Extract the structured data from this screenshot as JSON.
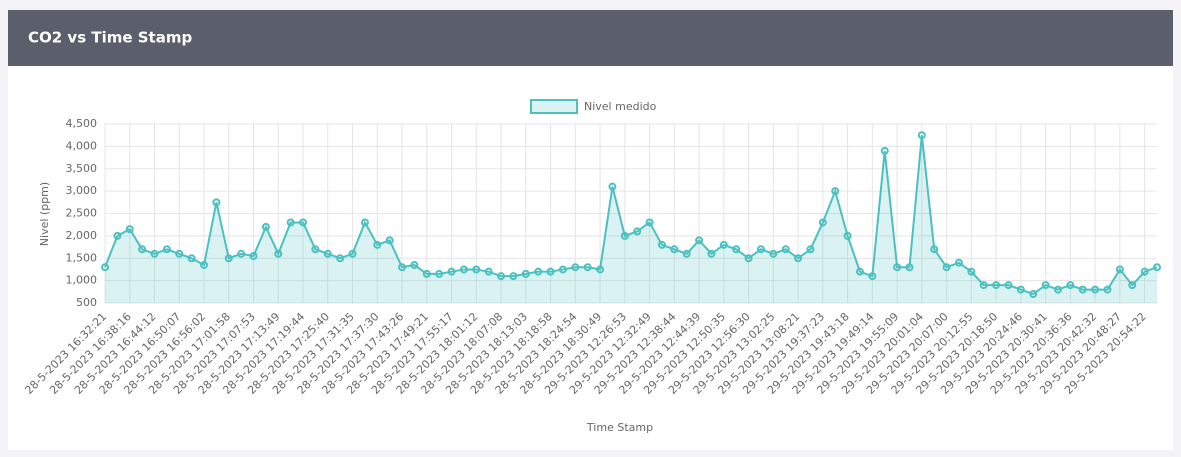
{
  "chart_data": {
    "type": "line",
    "title": "CO2 vs Time Stamp",
    "x_label": "Time Stamp",
    "y_label": "Nivel (ppm)",
    "categories": [
      "28-5-2023 16:32:21",
      null,
      "28-5-2023 16:38:16",
      null,
      "28-5-2023 16:44:12",
      null,
      "28-5-2023 16:50:07",
      null,
      "28-5-2023 16:56:02",
      null,
      "28-5-2023 17:01:58",
      null,
      "28-5-2023 17:07:53",
      null,
      "28-5-2023 17:13:49",
      null,
      "28-5-2023 17:19:44",
      null,
      "28-5-2023 17:25:40",
      null,
      "28-5-2023 17:31:35",
      null,
      "28-5-2023 17:37:30",
      null,
      "28-5-2023 17:43:26",
      null,
      "28-5-2023 17:49:21",
      null,
      "28-5-2023 17:55:17",
      null,
      "28-5-2023 18:01:12",
      null,
      "28-5-2023 18:07:08",
      null,
      "28-5-2023 18:13:03",
      null,
      "28-5-2023 18:18:58",
      null,
      "28-5-2023 18:24:54",
      null,
      "28-5-2023 18:30:49",
      null,
      "29-5-2023 12:26:53",
      null,
      "29-5-2023 12:32:49",
      null,
      "29-5-2023 12:38:44",
      null,
      "29-5-2023 12:44:39",
      null,
      "29-5-2023 12:50:35",
      null,
      "29-5-2023 12:56:30",
      null,
      "29-5-2023 13:02:25",
      null,
      "29-5-2023 13:08:21",
      null,
      "29-5-2023 19:37:23",
      null,
      "29-5-2023 19:43:18",
      null,
      "29-5-2023 19:49:14",
      null,
      "29-5-2023 19:55:09",
      null,
      "29-5-2023 20:01:04",
      null,
      "29-5-2023 20:07:00",
      null,
      "29-5-2023 20:12:55",
      null,
      "29-5-2023 20:18:50",
      null,
      "29-5-2023 20:24:46",
      null,
      "29-5-2023 20:30:41",
      null,
      "29-5-2023 20:36:36",
      null,
      "29-5-2023 20:42:32",
      null,
      "29-5-2023 20:48:27",
      null,
      "29-5-2023 20:54:22",
      null
    ],
    "series": [
      {
        "name": "Nivel medido",
        "color": "#4bc0c0",
        "values": [
          1300,
          2000,
          2150,
          1700,
          1600,
          1700,
          1600,
          1500,
          1350,
          2750,
          1500,
          1600,
          1550,
          2200,
          1600,
          2300,
          2300,
          1700,
          1600,
          1500,
          1600,
          2300,
          1800,
          1900,
          1300,
          1350,
          1150,
          1150,
          1200,
          1250,
          1250,
          1200,
          1100,
          1100,
          1150,
          1200,
          1200,
          1250,
          1300,
          1300,
          1250,
          3100,
          2000,
          2100,
          2300,
          1800,
          1700,
          1600,
          1900,
          1600,
          1800,
          1700,
          1500,
          1700,
          1600,
          1700,
          1500,
          1700,
          2300,
          3000,
          2000,
          1200,
          1100,
          3900,
          1300,
          1300,
          4250,
          1700,
          1300,
          1400,
          1200,
          900,
          900,
          900,
          800,
          700,
          900,
          800,
          900,
          800,
          800,
          800,
          1250,
          900,
          1200,
          1300
        ]
      }
    ],
    "ylim": [
      500,
      4500
    ],
    "yticks": [
      500,
      {
        "value": 1000,
        "label": "1,000"
      },
      {
        "value": 1500,
        "label": "1,500"
      },
      {
        "value": 2000,
        "label": "2,000"
      },
      {
        "value": 2500,
        "label": "2,500"
      },
      {
        "value": 3000,
        "label": "3,000"
      },
      {
        "value": 3500,
        "label": "3,500"
      },
      {
        "value": 4000,
        "label": "4,000"
      },
      {
        "value": 4500,
        "label": "4,500"
      }
    ],
    "grid": true,
    "legend": "top"
  }
}
